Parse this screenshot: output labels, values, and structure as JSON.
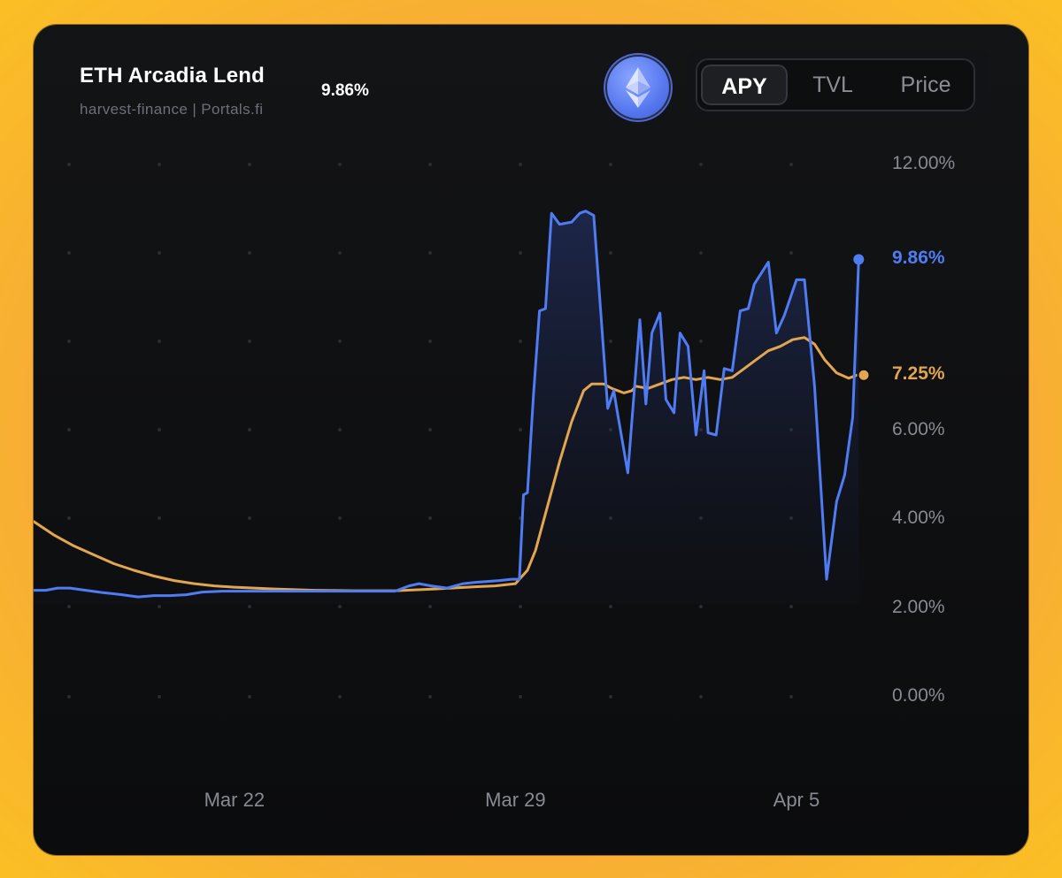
{
  "header": {
    "title": "ETH Arcadia Lend",
    "subtitle": "harvest-finance | Portals.fi",
    "current_value": "9.86%",
    "token_icon": "ethereum-icon"
  },
  "tabs": [
    {
      "label": "APY",
      "active": true
    },
    {
      "label": "TVL",
      "active": false
    },
    {
      "label": "Price",
      "active": false
    }
  ],
  "colors": {
    "accent_blue": "#4f7cf3",
    "accent_orange": "#e2a550",
    "background": "#0b0c0e",
    "frame": "#fbbf24"
  },
  "chart_data": {
    "type": "line",
    "title": "",
    "xlabel": "",
    "ylabel": "",
    "ylim": [
      0,
      12
    ],
    "y_ticks": [
      "0.00%",
      "2.00%",
      "4.00%",
      "6.00%",
      "12.00%"
    ],
    "x_ticks": [
      {
        "label": "Mar 22",
        "x": 5.0
      },
      {
        "label": "Mar 29",
        "x": 12.0
      },
      {
        "label": "Apr 5",
        "x": 19.0
      }
    ],
    "x_range": [
      0,
      20.5
    ],
    "grid": true,
    "series": [
      {
        "name": "",
        "color": "#4f7cf3",
        "end_label": "9.86%",
        "end_value": 9.86,
        "points": [
          [
            0,
            2.4
          ],
          [
            0.3,
            2.4
          ],
          [
            0.6,
            2.45
          ],
          [
            0.9,
            2.45
          ],
          [
            1.3,
            2.4
          ],
          [
            1.7,
            2.35
          ],
          [
            2.2,
            2.3
          ],
          [
            2.6,
            2.25
          ],
          [
            3.0,
            2.28
          ],
          [
            3.4,
            2.28
          ],
          [
            3.8,
            2.3
          ],
          [
            4.2,
            2.36
          ],
          [
            4.7,
            2.38
          ],
          [
            5.2,
            2.38
          ],
          [
            6,
            2.38
          ],
          [
            7,
            2.38
          ],
          [
            8,
            2.38
          ],
          [
            9,
            2.38
          ],
          [
            9.35,
            2.5
          ],
          [
            9.6,
            2.55
          ],
          [
            9.9,
            2.5
          ],
          [
            10.3,
            2.45
          ],
          [
            10.7,
            2.55
          ],
          [
            11,
            2.58
          ],
          [
            11.3,
            2.6
          ],
          [
            11.6,
            2.62
          ],
          [
            11.9,
            2.65
          ],
          [
            12.1,
            2.65
          ],
          [
            12.2,
            4.55
          ],
          [
            12.3,
            4.6
          ],
          [
            12.45,
            6.8
          ],
          [
            12.6,
            8.7
          ],
          [
            12.75,
            8.75
          ],
          [
            12.9,
            10.9
          ],
          [
            13.1,
            10.65
          ],
          [
            13.4,
            10.7
          ],
          [
            13.6,
            10.9
          ],
          [
            13.75,
            10.95
          ],
          [
            13.95,
            10.85
          ],
          [
            14.3,
            6.5
          ],
          [
            14.45,
            6.9
          ],
          [
            14.55,
            6.35
          ],
          [
            14.8,
            5.05
          ],
          [
            15.1,
            8.5
          ],
          [
            15.25,
            6.6
          ],
          [
            15.4,
            8.2
          ],
          [
            15.6,
            8.65
          ],
          [
            15.75,
            6.7
          ],
          [
            15.95,
            6.4
          ],
          [
            16.1,
            8.2
          ],
          [
            16.3,
            7.9
          ],
          [
            16.5,
            5.9
          ],
          [
            16.7,
            7.35
          ],
          [
            16.8,
            5.95
          ],
          [
            17.0,
            5.9
          ],
          [
            17.2,
            7.4
          ],
          [
            17.4,
            7.35
          ],
          [
            17.6,
            8.7
          ],
          [
            17.8,
            8.75
          ],
          [
            17.95,
            9.3
          ],
          [
            18.3,
            9.8
          ],
          [
            18.5,
            8.2
          ],
          [
            18.7,
            8.6
          ],
          [
            19.0,
            9.4
          ],
          [
            19.2,
            9.4
          ],
          [
            19.45,
            7.0
          ],
          [
            19.75,
            2.65
          ],
          [
            20.0,
            4.4
          ],
          [
            20.2,
            5.0
          ],
          [
            20.4,
            6.3
          ],
          [
            20.55,
            9.86
          ]
        ]
      },
      {
        "name": "",
        "color": "#e2a550",
        "end_label": "7.25%",
        "end_value": 7.25,
        "points": [
          [
            0,
            3.95
          ],
          [
            0.5,
            3.65
          ],
          [
            1,
            3.4
          ],
          [
            1.5,
            3.2
          ],
          [
            2,
            3.0
          ],
          [
            2.5,
            2.85
          ],
          [
            3,
            2.72
          ],
          [
            3.5,
            2.62
          ],
          [
            4,
            2.55
          ],
          [
            4.5,
            2.5
          ],
          [
            5,
            2.47
          ],
          [
            6,
            2.43
          ],
          [
            7,
            2.4
          ],
          [
            8,
            2.39
          ],
          [
            9,
            2.39
          ],
          [
            10,
            2.43
          ],
          [
            11,
            2.48
          ],
          [
            11.5,
            2.5
          ],
          [
            12.0,
            2.55
          ],
          [
            12.3,
            2.85
          ],
          [
            12.5,
            3.3
          ],
          [
            12.8,
            4.3
          ],
          [
            13.1,
            5.3
          ],
          [
            13.4,
            6.2
          ],
          [
            13.7,
            6.9
          ],
          [
            13.9,
            7.05
          ],
          [
            14.2,
            7.05
          ],
          [
            14.4,
            6.95
          ],
          [
            14.7,
            6.85
          ],
          [
            14.9,
            6.9
          ],
          [
            15.0,
            7.0
          ],
          [
            15.3,
            6.95
          ],
          [
            15.6,
            7.05
          ],
          [
            15.9,
            7.15
          ],
          [
            16.2,
            7.2
          ],
          [
            16.5,
            7.15
          ],
          [
            16.8,
            7.2
          ],
          [
            17.1,
            7.15
          ],
          [
            17.4,
            7.2
          ],
          [
            17.7,
            7.4
          ],
          [
            18.0,
            7.6
          ],
          [
            18.3,
            7.8
          ],
          [
            18.6,
            7.9
          ],
          [
            18.9,
            8.05
          ],
          [
            19.2,
            8.1
          ],
          [
            19.45,
            7.95
          ],
          [
            19.7,
            7.6
          ],
          [
            20.0,
            7.3
          ],
          [
            20.3,
            7.18
          ],
          [
            20.5,
            7.25
          ]
        ]
      }
    ]
  }
}
